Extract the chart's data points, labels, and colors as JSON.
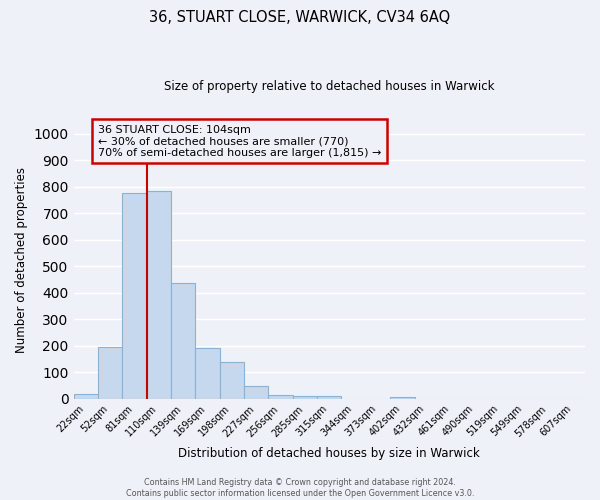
{
  "title": "36, STUART CLOSE, WARWICK, CV34 6AQ",
  "subtitle": "Size of property relative to detached houses in Warwick",
  "xlabel": "Distribution of detached houses by size in Warwick",
  "ylabel": "Number of detached properties",
  "bar_labels": [
    "22sqm",
    "52sqm",
    "81sqm",
    "110sqm",
    "139sqm",
    "169sqm",
    "198sqm",
    "227sqm",
    "256sqm",
    "285sqm",
    "315sqm",
    "344sqm",
    "373sqm",
    "402sqm",
    "432sqm",
    "461sqm",
    "490sqm",
    "519sqm",
    "549sqm",
    "578sqm",
    "607sqm"
  ],
  "bar_values": [
    18,
    195,
    775,
    785,
    438,
    190,
    140,
    48,
    15,
    12,
    10,
    0,
    0,
    8,
    0,
    0,
    0,
    0,
    0,
    0,
    0
  ],
  "bar_color": "#c5d8ed",
  "bar_edge_color": "#8ab2d5",
  "ylim": [
    0,
    1050
  ],
  "yticks": [
    0,
    100,
    200,
    300,
    400,
    500,
    600,
    700,
    800,
    900,
    1000
  ],
  "vline_x": 2.5,
  "vline_color": "#cc0000",
  "annotation_box_text": "36 STUART CLOSE: 104sqm\n← 30% of detached houses are smaller (770)\n70% of semi-detached houses are larger (1,815) →",
  "background_color": "#eef2f8",
  "grid_color": "#ffffff",
  "footer_line1": "Contains HM Land Registry data © Crown copyright and database right 2024.",
  "footer_line2": "Contains public sector information licensed under the Open Government Licence v3.0."
}
